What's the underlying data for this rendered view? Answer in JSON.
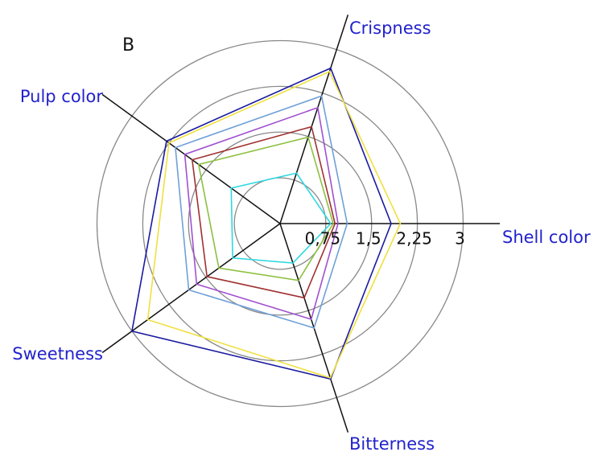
{
  "chart_data": {
    "type": "radar",
    "title": "B",
    "categories": [
      "Shell color",
      "Crispness",
      "Pulp color",
      "Sweetness",
      "Bitterness"
    ],
    "rlim": [
      0,
      3.6
    ],
    "rticks": [
      {
        "value": 0.75,
        "label": "0,75"
      },
      {
        "value": 1.5,
        "label": "1,5"
      },
      {
        "value": 2.25,
        "label": "2,25"
      },
      3
    ],
    "series": [
      {
        "color": "#1a1aa0",
        "values": [
          1.82,
          2.68,
          2.3,
          3.0,
          2.68
        ]
      },
      {
        "color": "#f0e040",
        "values": [
          1.97,
          2.62,
          2.25,
          2.68,
          2.66
        ]
      },
      {
        "color": "#6fa0d8",
        "values": [
          1.1,
          2.2,
          2.12,
          1.85,
          1.8
        ]
      },
      {
        "color": "#a050d0",
        "values": [
          0.95,
          2.0,
          1.93,
          1.69,
          1.65
        ]
      },
      {
        "color": "#a03030",
        "values": [
          0.9,
          1.67,
          1.78,
          1.48,
          1.28
        ]
      },
      {
        "color": "#8cc040",
        "values": [
          0.87,
          1.49,
          1.65,
          1.24,
          0.98
        ]
      },
      {
        "color": "#30d8e0",
        "values": [
          0.83,
          0.87,
          0.99,
          0.96,
          0.68
        ]
      }
    ]
  }
}
